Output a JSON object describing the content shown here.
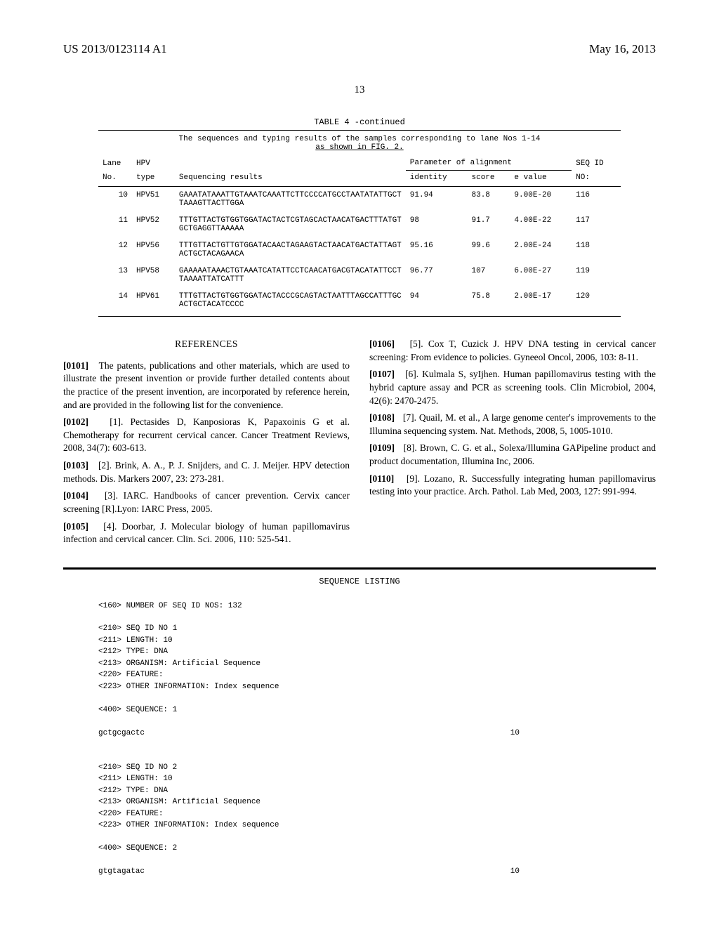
{
  "header": {
    "pub_number": "US 2013/0123114 A1",
    "pub_date": "May 16, 2013"
  },
  "page_number": "13",
  "table": {
    "title": "TABLE 4 -continued",
    "caption_line1": "The sequences and typing results of the samples corresponding to lane Nos 1-14",
    "caption_line2": "as shown in FIG. 2.",
    "headers": {
      "lane": "Lane",
      "no": "No.",
      "hpv": "HPV",
      "type": "type",
      "seq_results": "Sequencing results",
      "param_align": "Parameter of alignment",
      "identity": "identity",
      "score": "score",
      "evalue": "e value",
      "seqid": "SEQ ID",
      "seqid_no": "NO:"
    },
    "rows": [
      {
        "lane": "10",
        "hpv": "HPV51",
        "seq1": "GAAATATAAATTGTAAATCAAATTCTTCCCCATGCCTAATATATTGCT",
        "seq2": "TAAAGTTACTTGGA",
        "identity": "91.94",
        "score": "83.8",
        "evalue": "9.00E-20",
        "seqid": "116"
      },
      {
        "lane": "11",
        "hpv": "HPV52",
        "seq1": "TTTGTTACTGTGGTGGATACTACTCGTAGCACTAACATGACTTTATGT",
        "seq2": "GCTGAGGTTAAAAA",
        "identity": "98",
        "score": "91.7",
        "evalue": "4.00E-22",
        "seqid": "117"
      },
      {
        "lane": "12",
        "hpv": "HPV56",
        "seq1": "TTTGTTACTGTTGTGGATACAACTAGAAGTACTAACATGACTATTAGT",
        "seq2": "ACTGCTACAGAACA",
        "identity": "95.16",
        "score": "99.6",
        "evalue": "2.00E-24",
        "seqid": "118"
      },
      {
        "lane": "13",
        "hpv": "HPV58",
        "seq1": "GAAAAATAAACTGTAAATCATATTCCTCAACATGACGTACATATTCCT",
        "seq2": "TAAAATTATCATTT",
        "identity": "96.77",
        "score": "107",
        "evalue": "6.00E-27",
        "seqid": "119"
      },
      {
        "lane": "14",
        "hpv": "HPV61",
        "seq1": "TTTGTTACTGTGGTGGATACTACCCGCAGTACTAATTTAGCCATTTGC",
        "seq2": "ACTGCTACATCCCC",
        "identity": "94",
        "score": "75.8",
        "evalue": "2.00E-17",
        "seqid": "120"
      }
    ]
  },
  "references": {
    "heading": "REFERENCES",
    "p0101": {
      "num": "[0101]",
      "text": "The patents, publications and other materials, which are used to illustrate the present invention or provide further detailed contents about the practice of the present invention, are incorporated by reference herein, and are provided in the following list for the convenience."
    },
    "p0102": {
      "num": "[0102]",
      "text": "[1]. Pectasides D, Kanposioras K, Papaxoinis G et al. Chemotherapy for recurrent cervical cancer. Cancer Treatment Reviews, 2008, 34(7): 603-613."
    },
    "p0103": {
      "num": "[0103]",
      "text": "[2]. Brink, A. A., P. J. Snijders, and C. J. Meijer. HPV detection methods. Dis. Markers 2007, 23: 273-281."
    },
    "p0104": {
      "num": "[0104]",
      "text": "[3]. IARC. Handbooks of cancer prevention. Cervix cancer screening [R].Lyon: IARC Press, 2005."
    },
    "p0105": {
      "num": "[0105]",
      "text": "[4]. Doorbar, J. Molecular biology of human papillomavirus infection and cervical cancer. Clin. Sci. 2006, 110: 525-541."
    },
    "p0106": {
      "num": "[0106]",
      "text": "[5]. Cox T, Cuzick J. HPV DNA testing in cervical cancer screening: From evidence to policies. Gyneeol Oncol, 2006, 103: 8-11."
    },
    "p0107": {
      "num": "[0107]",
      "text": "[6]. Kulmala S, syIjhen. Human papillomavirus testing with the hybrid capture assay and PCR as screening tools. Clin Microbiol, 2004, 42(6): 2470-2475."
    },
    "p0108": {
      "num": "[0108]",
      "text": "[7]. Quail, M. et al., A large genome center's improvements to the Illumina sequencing system. Nat. Methods, 2008, 5, 1005-1010."
    },
    "p0109": {
      "num": "[0109]",
      "text": "[8]. Brown, C. G. et al., Solexa/Illumina GAPipeline product and product documentation, Illumina Inc, 2006."
    },
    "p0110": {
      "num": "[0110]",
      "text": "[9]. Lozano, R. Successfully integrating human papillomavirus testing into your practice. Arch. Pathol. Lab Med, 2003, 127: 991-994."
    }
  },
  "seq_listing": {
    "title": "SEQUENCE LISTING",
    "num_seqs_label": "<160> NUMBER OF SEQ ID NOS: 132",
    "entries": [
      {
        "lines": [
          "<210> SEQ ID NO 1",
          "<211> LENGTH: 10",
          "<212> TYPE: DNA",
          "<213> ORGANISM: Artificial Sequence",
          "<220> FEATURE:",
          "<223> OTHER INFORMATION: Index sequence"
        ],
        "seq_header": "<400> SEQUENCE: 1",
        "sequence": "gctgcgactc",
        "len": "10"
      },
      {
        "lines": [
          "<210> SEQ ID NO 2",
          "<211> LENGTH: 10",
          "<212> TYPE: DNA",
          "<213> ORGANISM: Artificial Sequence",
          "<220> FEATURE:",
          "<223> OTHER INFORMATION: Index sequence"
        ],
        "seq_header": "<400> SEQUENCE: 2",
        "sequence": "gtgtagatac",
        "len": "10"
      }
    ]
  }
}
